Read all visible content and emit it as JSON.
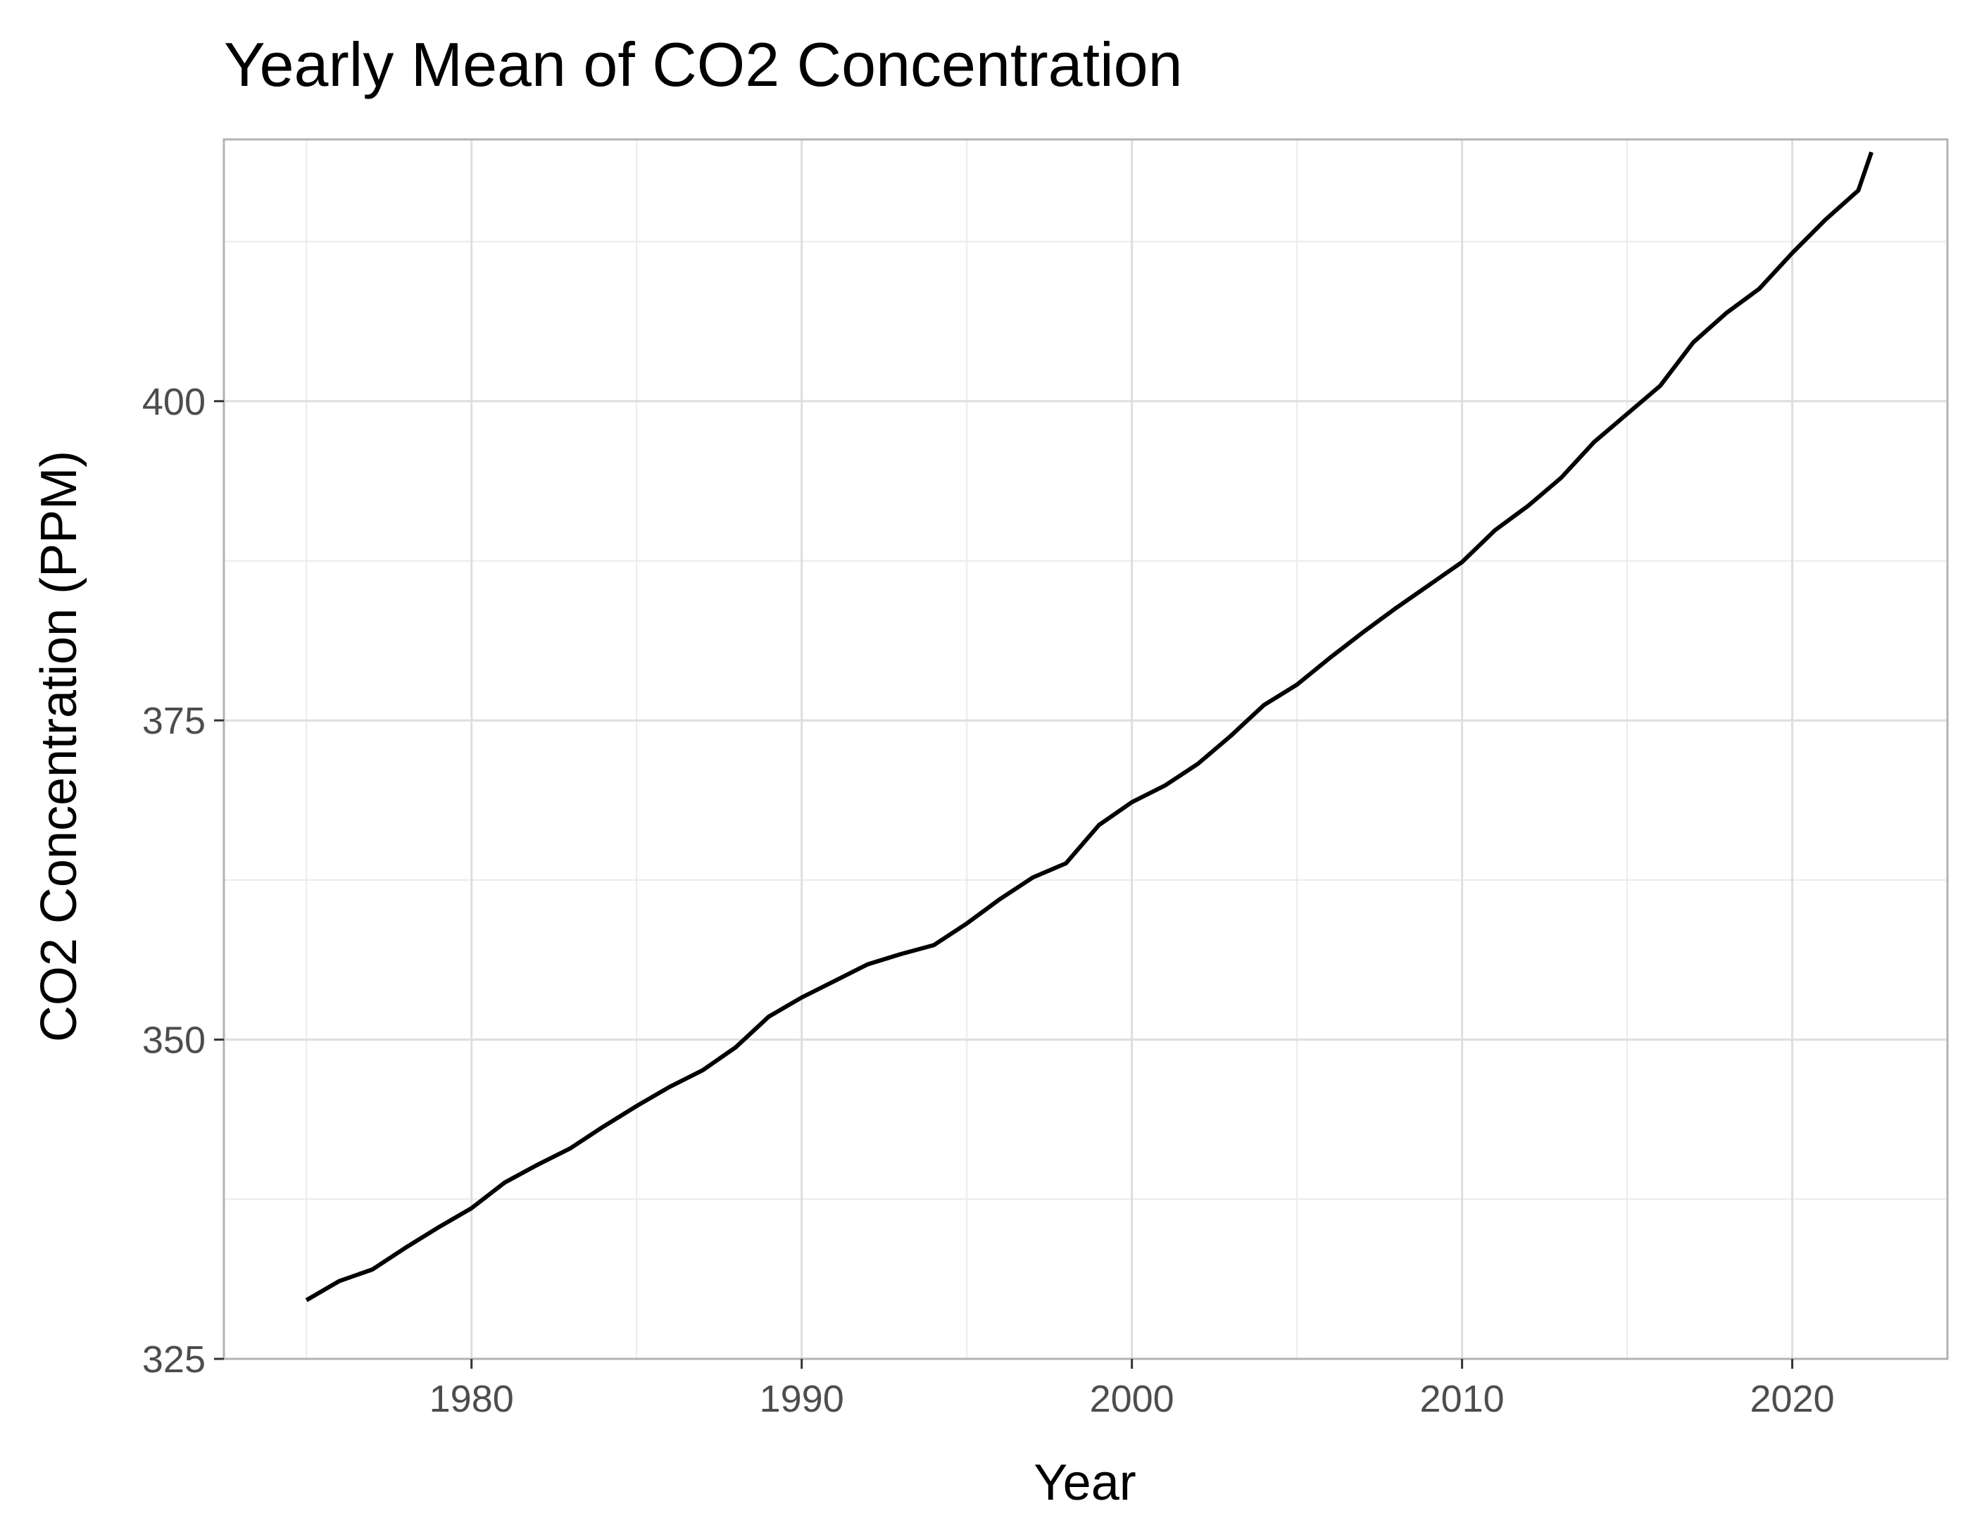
{
  "chart_data": {
    "type": "line",
    "title": "Yearly Mean of CO2 Concentration",
    "xlabel": "Year",
    "ylabel": "CO2 Concentration (PPM)",
    "xlim": [
      1972.5,
      2024.7
    ],
    "ylim": [
      325,
      420.5
    ],
    "x_ticks": [
      1980,
      1990,
      2000,
      2010,
      2020
    ],
    "x_tick_labels": [
      "1980",
      "1990",
      "2000",
      "2010",
      "2020"
    ],
    "y_ticks": [
      325,
      350,
      375,
      400
    ],
    "y_tick_labels": [
      "325",
      "350",
      "375",
      "400"
    ],
    "x_minor_grid": [
      1975,
      1985,
      1995,
      2005,
      2015
    ],
    "y_minor_grid": [
      337.5,
      362.5,
      387.5,
      412.5
    ],
    "grid": true,
    "line_color": "#000000",
    "series": [
      {
        "x": [
          1975,
          1976,
          1977,
          1978,
          1979,
          1980,
          1981,
          1982,
          1983,
          1984,
          1985,
          1986,
          1987,
          1988,
          1989,
          1990,
          1991,
          1992,
          1993,
          1994,
          1995,
          1996,
          1997,
          1998,
          1999,
          2000,
          2001,
          2002,
          2003,
          2004,
          2005,
          2006,
          2007,
          2008,
          2009,
          2010,
          2011,
          2012,
          2013,
          2014,
          2015,
          2016,
          2017,
          2018,
          2019,
          2020,
          2021,
          2022,
          2022.4
        ],
        "values": [
          329.6,
          331.1,
          332.0,
          333.7,
          335.3,
          336.8,
          338.8,
          340.2,
          341.5,
          343.2,
          344.8,
          346.3,
          347.6,
          349.4,
          351.8,
          353.3,
          354.6,
          355.9,
          356.7,
          357.4,
          359.1,
          361.0,
          362.7,
          363.8,
          366.8,
          368.6,
          369.9,
          371.6,
          373.8,
          376.2,
          377.8,
          379.9,
          381.9,
          383.8,
          385.6,
          387.4,
          389.9,
          391.8,
          394.0,
          396.8,
          399.0,
          401.2,
          404.6,
          406.9,
          408.8,
          411.6,
          414.2,
          416.5,
          419.5
        ]
      }
    ]
  }
}
